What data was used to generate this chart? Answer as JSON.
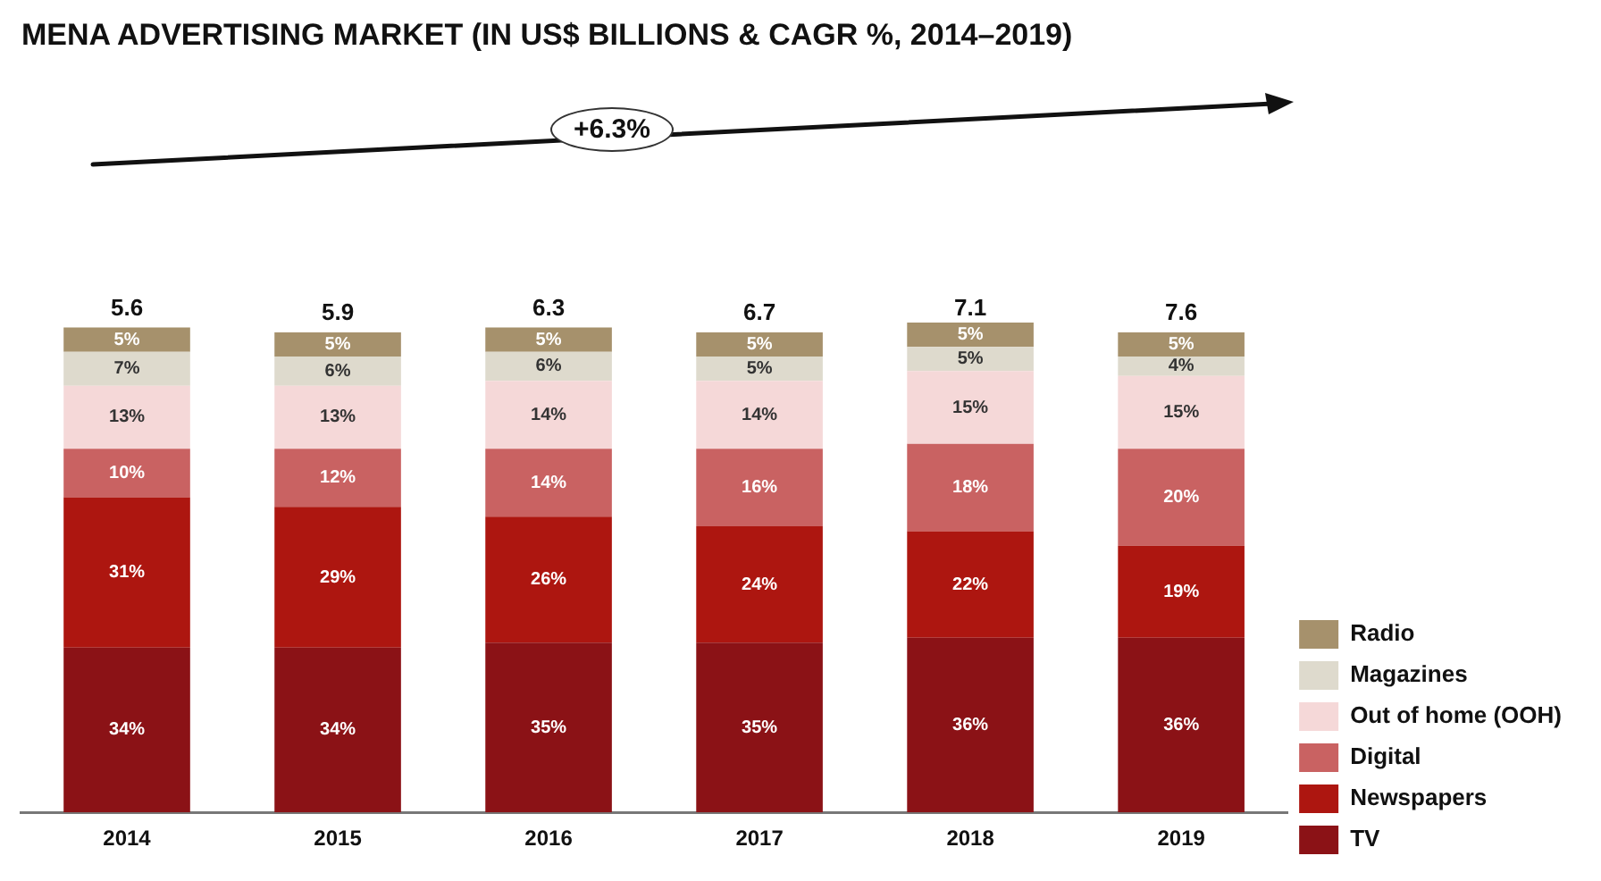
{
  "chart_data": {
    "type": "bar",
    "title": "MENA ADVERTISING MARKET (IN US$ BILLIONS & CAGR %, 2014–2019)",
    "categories": [
      "2014",
      "2015",
      "2016",
      "2017",
      "2018",
      "2019"
    ],
    "stacked": true,
    "legend": "bottom right",
    "annotations": [
      "+6.3%",
      {
        "text": "5.6",
        "x": "2014",
        "y": 100
      },
      {
        "text": "5.9",
        "x": "2015",
        "y": 99
      },
      {
        "text": "6.3",
        "x": "2016",
        "y": 100
      },
      {
        "text": "6.7",
        "x": "2017",
        "y": 99
      },
      {
        "text": "7.1",
        "x": "2018",
        "y": 100
      },
      {
        "text": "7.6",
        "x": "2019",
        "y": 99
      }
    ],
    "series": [
      {
        "name": "TV",
        "color": "#8b1216",
        "values": [
          34,
          34,
          35,
          35,
          36,
          36
        ],
        "value_labels": [
          "34%",
          "34%",
          "35%",
          "35%",
          "36%",
          "36%"
        ]
      },
      {
        "name": "Newspapers",
        "color": "#ad1610",
        "values": [
          31,
          29,
          26,
          24,
          22,
          19
        ],
        "value_labels": [
          "31%",
          "29%",
          "26%",
          "24%",
          "22%",
          "19%"
        ]
      },
      {
        "name": "Digital",
        "color": "#c96262",
        "values": [
          10,
          12,
          14,
          16,
          18,
          20
        ],
        "value_labels": [
          "10%",
          "12%",
          "14%",
          "16%",
          "18%",
          "20%"
        ]
      },
      {
        "name": "Out of home (OOH)",
        "color": "#f5d8d8",
        "values": [
          13,
          13,
          14,
          14,
          15,
          15
        ],
        "value_labels": [
          "13%",
          "13%",
          "14%",
          "14%",
          "15%",
          "15%"
        ]
      },
      {
        "name": "Magazines",
        "color": "#dedacd",
        "values": [
          7,
          6,
          6,
          5,
          5,
          4
        ],
        "value_labels": [
          "7%",
          "6%",
          "6%",
          "5%",
          "5%",
          "4%"
        ]
      },
      {
        "name": "Radio",
        "color": "#a6916c",
        "values": [
          5,
          5,
          5,
          5,
          5,
          5
        ],
        "value_labels": [
          "5%",
          "5%",
          "5%",
          "5%",
          "5%",
          "5%"
        ]
      }
    ]
  }
}
